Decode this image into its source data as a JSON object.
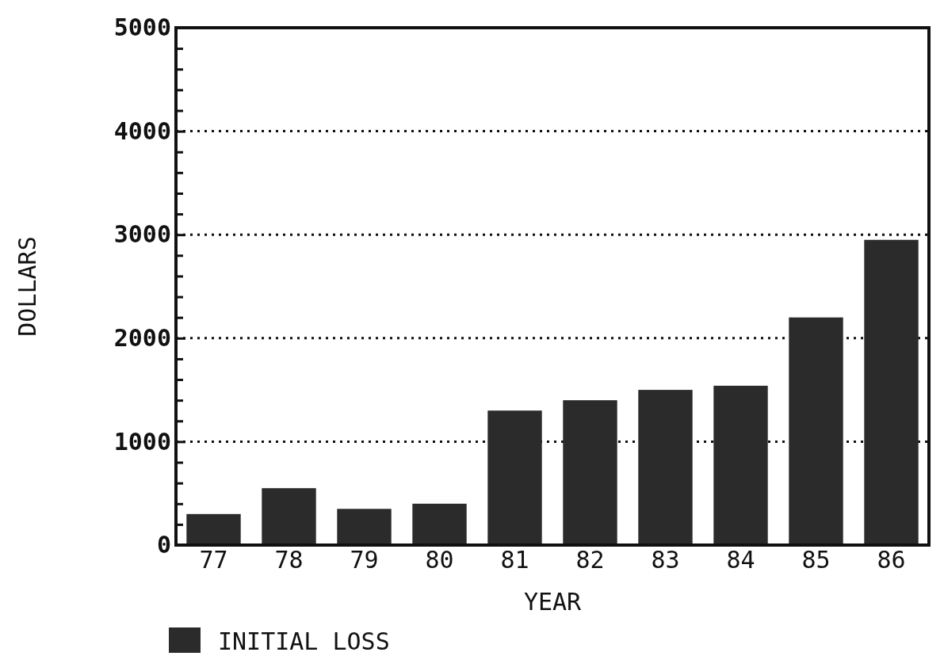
{
  "chart_data": {
    "type": "bar",
    "xlabel": "YEAR",
    "ylabel": "DOLLARS",
    "categories": [
      "77",
      "78",
      "79",
      "80",
      "81",
      "82",
      "83",
      "84",
      "85",
      "86"
    ],
    "series": [
      {
        "name": "INITIAL LOSS",
        "color": "#2b2b2b",
        "values": [
          300,
          550,
          350,
          400,
          1300,
          1400,
          1500,
          1540,
          2200,
          2950
        ]
      }
    ],
    "ylim": [
      0,
      5000
    ],
    "yticks": [
      0,
      {
        "value": 200,
        "label": null
      },
      {
        "value": 400,
        "label": null
      },
      {
        "value": 600,
        "label": null
      },
      {
        "value": 800,
        "label": null
      },
      1000,
      {
        "value": 1200,
        "label": null
      },
      {
        "value": 1400,
        "label": null
      },
      {
        "value": 1600,
        "label": null
      },
      {
        "value": 1800,
        "label": null
      },
      2000,
      {
        "value": 2200,
        "label": null
      },
      {
        "value": 2400,
        "label": null
      },
      {
        "value": 2600,
        "label": null
      },
      {
        "value": 2800,
        "label": null
      },
      3000,
      {
        "value": 3200,
        "label": null
      },
      {
        "value": 3400,
        "label": null
      },
      {
        "value": 3600,
        "label": null
      },
      {
        "value": 3800,
        "label": null
      },
      4000,
      {
        "value": 4200,
        "label": null
      },
      {
        "value": 4400,
        "label": null
      },
      {
        "value": 4600,
        "label": null
      },
      {
        "value": 4800,
        "label": null
      },
      5000
    ],
    "grid": "y",
    "line_style": "dotted",
    "legend": "bottom left"
  }
}
